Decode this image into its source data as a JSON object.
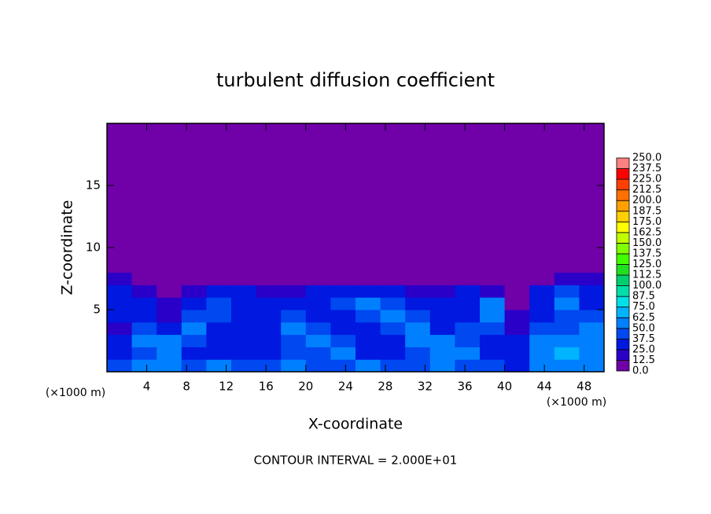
{
  "chart_data": {
    "type": "heatmap",
    "title": "turbulent diffusion coefficient",
    "x_label": "X-coordinate",
    "y_label": "Z-coordinate",
    "x_unit": "(×1000 m)",
    "y_unit": "(×1000 m)",
    "note": "CONTOUR INTERVAL = 2.000E+01",
    "xlim": [
      0,
      50
    ],
    "ylim": [
      0,
      20
    ],
    "xticks": [
      4,
      8,
      12,
      16,
      20,
      24,
      28,
      32,
      36,
      40,
      44,
      48
    ],
    "yticks": [
      5,
      10,
      15
    ],
    "x_edges": [
      0,
      2.5,
      5,
      7.5,
      10,
      12.5,
      15,
      17.5,
      20,
      22.5,
      25,
      27.5,
      30,
      32.5,
      35,
      37.5,
      40,
      42.5,
      45,
      47.5,
      50
    ],
    "z_edges": [
      0,
      1,
      2,
      3,
      4,
      5,
      6,
      7,
      8,
      20
    ],
    "values": [
      [
        40,
        50,
        50,
        40,
        50,
        40,
        40,
        50,
        40,
        40,
        50,
        40,
        40,
        50,
        40,
        40,
        30,
        50,
        60,
        50
      ],
      [
        30,
        45,
        60,
        30,
        25,
        35,
        30,
        40,
        45,
        55,
        30,
        25,
        40,
        60,
        50,
        30,
        35,
        55,
        65,
        60
      ],
      [
        25,
        50,
        55,
        40,
        30,
        30,
        25,
        45,
        55,
        45,
        25,
        30,
        50,
        55,
        40,
        25,
        30,
        60,
        50,
        55
      ],
      [
        20,
        45,
        35,
        50,
        35,
        25,
        30,
        50,
        45,
        30,
        30,
        45,
        55,
        35,
        45,
        40,
        20,
        45,
        40,
        50
      ],
      [
        25,
        35,
        20,
        45,
        40,
        30,
        35,
        40,
        30,
        35,
        45,
        55,
        40,
        30,
        35,
        50,
        15,
        35,
        45,
        40
      ],
      [
        30,
        25,
        15,
        30,
        45,
        35,
        30,
        25,
        35,
        45,
        50,
        40,
        30,
        25,
        30,
        55,
        10,
        30,
        50,
        35
      ],
      [
        35,
        20,
        10,
        20,
        25,
        30,
        20,
        20,
        25,
        30,
        30,
        25,
        20,
        15,
        25,
        20,
        5,
        25,
        40,
        30
      ],
      [
        20,
        5,
        0,
        0,
        0,
        5,
        5,
        10,
        10,
        10,
        10,
        5,
        5,
        0,
        0,
        0,
        0,
        10,
        15,
        15
      ],
      [
        0,
        0,
        0,
        0,
        0,
        0,
        0,
        0,
        0,
        0,
        0,
        0,
        0,
        0,
        0,
        0,
        0,
        0,
        0,
        0
      ]
    ],
    "levels": [
      {
        "value": 0,
        "label": "0.0"
      },
      {
        "value": 12.5,
        "label": "12.5"
      },
      {
        "value": 25,
        "label": "25.0"
      },
      {
        "value": 37.5,
        "label": "37.5"
      },
      {
        "value": 50,
        "label": "50.0"
      },
      {
        "value": 62.5,
        "label": "62.5"
      },
      {
        "value": 75,
        "label": "75.0"
      },
      {
        "value": 87.5,
        "label": "87.5"
      },
      {
        "value": 100,
        "label": "100.0"
      },
      {
        "value": 112.5,
        "label": "112.5"
      },
      {
        "value": 125,
        "label": "125.0"
      },
      {
        "value": 137.5,
        "label": "137.5"
      },
      {
        "value": 150,
        "label": "150.0"
      },
      {
        "value": 162.5,
        "label": "162.5"
      },
      {
        "value": 175,
        "label": "175.0"
      },
      {
        "value": 187.5,
        "label": "187.5"
      },
      {
        "value": 200,
        "label": "200.0"
      },
      {
        "value": 212.5,
        "label": "212.5"
      },
      {
        "value": 225,
        "label": "225.0"
      },
      {
        "value": 237.5,
        "label": "237.5"
      },
      {
        "value": 250,
        "label": "250.0"
      }
    ],
    "colors": [
      "#7000a8",
      "#2a00c8",
      "#0018e0",
      "#0048f0",
      "#0080ff",
      "#00b4ff",
      "#00e0e8",
      "#00e0a8",
      "#00d070",
      "#20e020",
      "#40ff00",
      "#80ff00",
      "#c0ff00",
      "#ffff00",
      "#ffd000",
      "#ffa000",
      "#ff7000",
      "#ff4000",
      "#ff0000",
      "#ff8080"
    ]
  }
}
